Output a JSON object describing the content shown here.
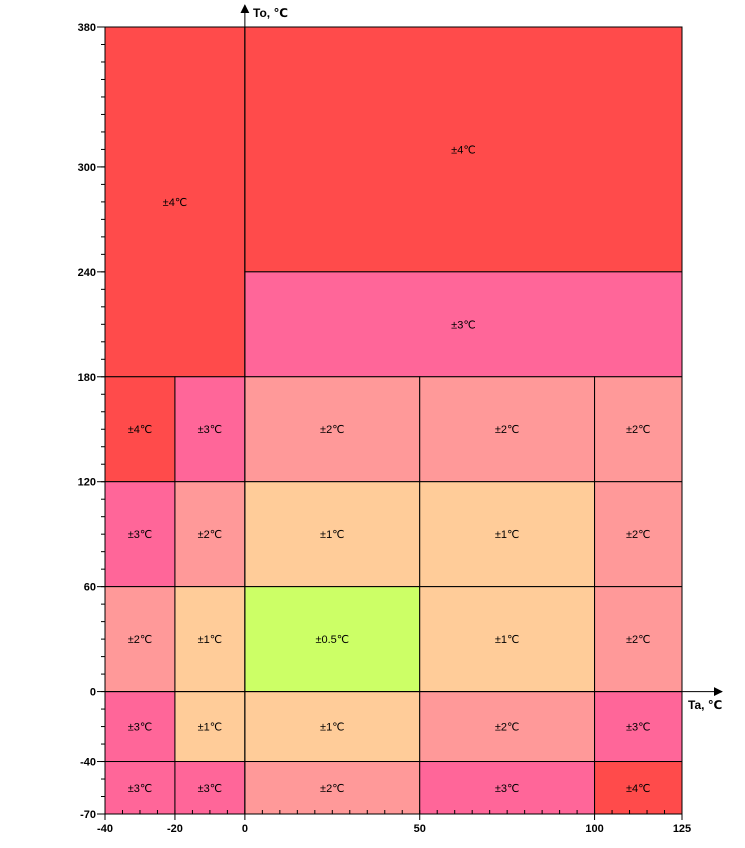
{
  "chart_data": {
    "type": "heatmap",
    "title": "",
    "xlabel": "Ta, ℃",
    "ylabel": "To, ℃",
    "xlim": [
      -40,
      125
    ],
    "ylim": [
      -70,
      380
    ],
    "x_ticks": [
      {
        "v": -40,
        "label": "-40"
      },
      {
        "v": -20,
        "label": "-20"
      },
      {
        "v": 0,
        "label": "0"
      },
      {
        "v": 50,
        "label": "50"
      },
      {
        "v": 100,
        "label": "100"
      },
      {
        "v": 125,
        "label": "125"
      }
    ],
    "y_ticks": [
      {
        "v": 380,
        "label": "380"
      },
      {
        "v": 300,
        "label": "300"
      },
      {
        "v": 240,
        "label": "240"
      },
      {
        "v": 180,
        "label": "180"
      },
      {
        "v": 120,
        "label": "120"
      },
      {
        "v": 60,
        "label": "60"
      },
      {
        "v": 0,
        "label": "0"
      },
      {
        "v": -40,
        "label": "-40"
      },
      {
        "v": -70,
        "label": "-70"
      }
    ],
    "colors": {
      "±4℃": "#ff4b4b",
      "±3℃": "#ff6699",
      "±2℃": "#ff9999",
      "±1℃": "#ffcc99",
      "±0.5℃": "#ccff66"
    },
    "cells": [
      {
        "x0": -40,
        "x1": 0,
        "y0": 180,
        "y1": 380,
        "label": "±4℃"
      },
      {
        "x0": 0,
        "x1": 125,
        "y0": 240,
        "y1": 380,
        "label": "±4℃"
      },
      {
        "x0": 0,
        "x1": 125,
        "y0": 180,
        "y1": 240,
        "label": "±3℃"
      },
      {
        "x0": -40,
        "x1": -20,
        "y0": 120,
        "y1": 180,
        "label": "±4℃"
      },
      {
        "x0": -20,
        "x1": 0,
        "y0": 120,
        "y1": 180,
        "label": "±3℃"
      },
      {
        "x0": 0,
        "x1": 50,
        "y0": 120,
        "y1": 180,
        "label": "±2℃"
      },
      {
        "x0": 50,
        "x1": 100,
        "y0": 120,
        "y1": 180,
        "label": "±2℃"
      },
      {
        "x0": 100,
        "x1": 125,
        "y0": 120,
        "y1": 180,
        "label": "±2℃"
      },
      {
        "x0": -40,
        "x1": -20,
        "y0": 60,
        "y1": 120,
        "label": "±3℃"
      },
      {
        "x0": -20,
        "x1": 0,
        "y0": 60,
        "y1": 120,
        "label": "±2℃"
      },
      {
        "x0": 0,
        "x1": 50,
        "y0": 60,
        "y1": 120,
        "label": "±1℃"
      },
      {
        "x0": 50,
        "x1": 100,
        "y0": 60,
        "y1": 120,
        "label": "±1℃"
      },
      {
        "x0": 100,
        "x1": 125,
        "y0": 60,
        "y1": 120,
        "label": "±2℃"
      },
      {
        "x0": -40,
        "x1": -20,
        "y0": 0,
        "y1": 60,
        "label": "±2℃"
      },
      {
        "x0": -20,
        "x1": 0,
        "y0": 0,
        "y1": 60,
        "label": "±1℃"
      },
      {
        "x0": 0,
        "x1": 50,
        "y0": 0,
        "y1": 60,
        "label": "±0.5℃"
      },
      {
        "x0": 50,
        "x1": 100,
        "y0": 0,
        "y1": 60,
        "label": "±1℃"
      },
      {
        "x0": 100,
        "x1": 125,
        "y0": 0,
        "y1": 60,
        "label": "±2℃"
      },
      {
        "x0": -40,
        "x1": -20,
        "y0": -40,
        "y1": 0,
        "label": "±3℃"
      },
      {
        "x0": -20,
        "x1": 0,
        "y0": -40,
        "y1": 0,
        "label": "±1℃"
      },
      {
        "x0": 0,
        "x1": 50,
        "y0": -40,
        "y1": 0,
        "label": "±1℃"
      },
      {
        "x0": 50,
        "x1": 100,
        "y0": -40,
        "y1": 0,
        "label": "±2℃"
      },
      {
        "x0": 100,
        "x1": 125,
        "y0": -40,
        "y1": 0,
        "label": "±3℃"
      },
      {
        "x0": -40,
        "x1": -20,
        "y0": -70,
        "y1": -40,
        "label": "±3℃"
      },
      {
        "x0": -20,
        "x1": 0,
        "y0": -70,
        "y1": -40,
        "label": "±3℃"
      },
      {
        "x0": 0,
        "x1": 50,
        "y0": -70,
        "y1": -40,
        "label": "±2℃"
      },
      {
        "x0": 50,
        "x1": 100,
        "y0": -70,
        "y1": -40,
        "label": "±3℃"
      },
      {
        "x0": 100,
        "x1": 125,
        "y0": -70,
        "y1": -40,
        "label": "±4℃"
      }
    ]
  }
}
